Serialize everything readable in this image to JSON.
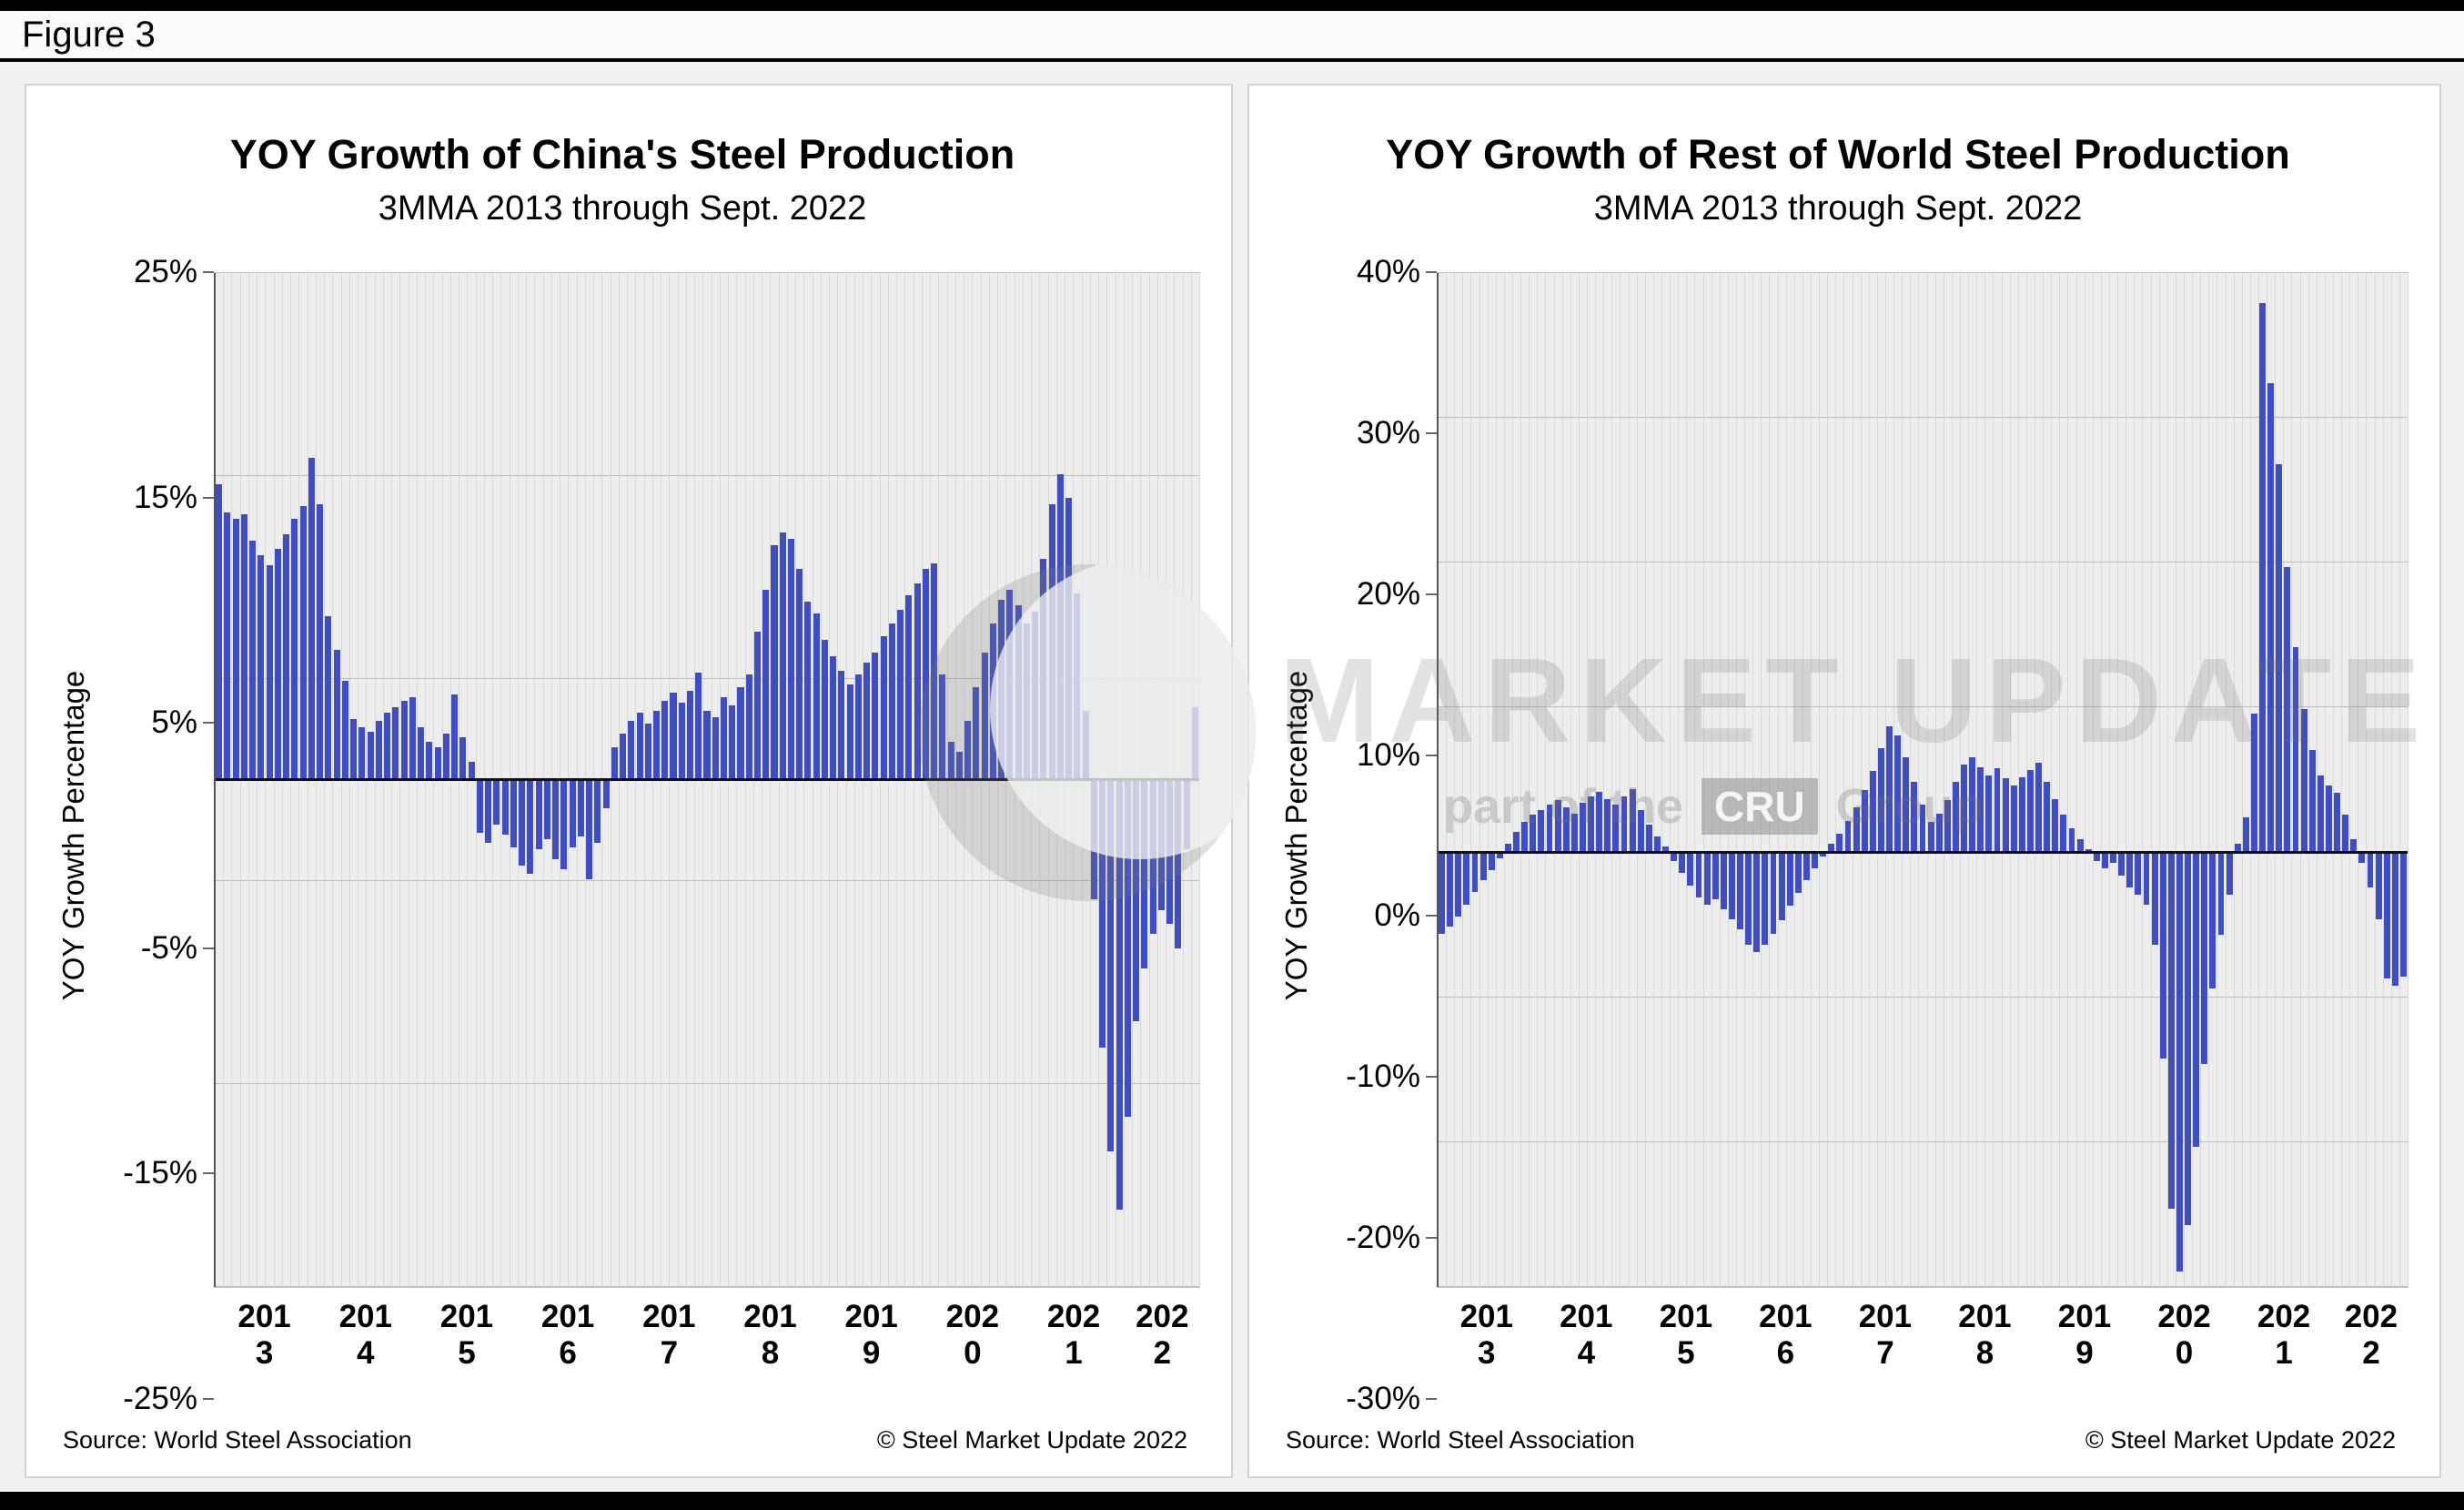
{
  "figure": {
    "label": "Figure 3"
  },
  "watermark": {
    "title": "MARKET UPDATE",
    "sub_left": "part of the",
    "badge": "CRU",
    "sub_right": "Group"
  },
  "chart_data": [
    {
      "type": "bar",
      "title": "YOY Growth of China's Steel Production",
      "subtitle": "3MMA 2013 through Sept. 2022",
      "ylabel": "YOY Growth Percentage",
      "xlabel": "",
      "ylim": [
        -25,
        25
      ],
      "yticks": [
        25,
        15,
        5,
        -5,
        -15,
        -25
      ],
      "ytick_labels": [
        "25%",
        "15%",
        "5%",
        "-5%",
        "-15%",
        "-25%"
      ],
      "x_years": [
        "2013",
        "2014",
        "2015",
        "2016",
        "2017",
        "2018",
        "2019",
        "2020",
        "2021",
        "2022"
      ],
      "x_note": "monthly, Jan 2013 through Sept. 2022",
      "grid": true,
      "legend": "none",
      "bar_color": "#3f4dbf",
      "values": [
        14.6,
        13.2,
        12.9,
        13.1,
        11.8,
        11.1,
        10.6,
        11.4,
        12.1,
        12.9,
        13.5,
        15.9,
        13.6,
        8.1,
        6.4,
        4.9,
        3.0,
        2.6,
        2.4,
        2.9,
        3.3,
        3.6,
        3.9,
        4.1,
        2.6,
        1.9,
        1.6,
        2.3,
        4.2,
        2.1,
        0.9,
        -2.6,
        -3.1,
        -2.2,
        -2.7,
        -3.3,
        -4.2,
        -4.6,
        -3.4,
        -2.9,
        -3.9,
        -4.4,
        -3.3,
        -2.8,
        -4.9,
        -3.1,
        -1.4,
        1.6,
        2.3,
        2.9,
        3.3,
        2.8,
        3.4,
        3.9,
        4.3,
        3.8,
        4.4,
        5.3,
        3.4,
        3.1,
        4.1,
        3.7,
        4.6,
        5.2,
        7.3,
        9.4,
        11.6,
        12.2,
        11.9,
        10.4,
        8.8,
        8.2,
        6.9,
        6.1,
        5.4,
        4.7,
        5.2,
        5.8,
        6.3,
        7.1,
        7.7,
        8.4,
        9.1,
        9.7,
        10.4,
        10.7,
        5.2,
        1.9,
        1.4,
        2.9,
        4.6,
        6.3,
        7.7,
        8.9,
        9.4,
        8.6,
        7.7,
        8.3,
        10.9,
        13.6,
        15.1,
        13.9,
        9.2,
        3.4,
        -5.9,
        -13.2,
        -18.3,
        -21.2,
        -16.6,
        -11.9,
        -9.3,
        -7.6,
        -6.4,
        -7.1,
        -8.3,
        -3.4,
        3.6
      ],
      "source": "Source: World Steel Association",
      "copyright": "© Steel Market Update 2022"
    },
    {
      "type": "bar",
      "title": "YOY Growth of Rest of World Steel Production",
      "subtitle": "3MMA 2013 through Sept. 2022",
      "ylabel": "YOY Growth Percentage",
      "xlabel": "",
      "ylim": [
        -30,
        40
      ],
      "yticks": [
        40,
        30,
        20,
        10,
        0,
        -10,
        -20,
        -30
      ],
      "ytick_labels": [
        "40%",
        "30%",
        "20%",
        "10%",
        "0%",
        "-10%",
        "-20%",
        "-30%"
      ],
      "x_years": [
        "2013",
        "2014",
        "2015",
        "2016",
        "2017",
        "2018",
        "2019",
        "2020",
        "2021",
        "2022"
      ],
      "x_note": "monthly, Jan 2013 through Sept. 2022",
      "grid": true,
      "legend": "none",
      "bar_color": "#3f4dbf",
      "values": [
        -5.6,
        -5.1,
        -4.4,
        -3.6,
        -2.7,
        -1.9,
        -1.2,
        -0.4,
        0.6,
        1.4,
        2.1,
        2.6,
        2.9,
        3.3,
        3.6,
        3.1,
        2.7,
        3.4,
        3.9,
        4.2,
        3.7,
        3.3,
        3.9,
        4.4,
        2.9,
        1.9,
        1.1,
        0.4,
        -0.6,
        -1.4,
        -2.3,
        -3.1,
        -3.6,
        -3.2,
        -3.9,
        -4.6,
        -5.3,
        -6.4,
        -6.9,
        -6.4,
        -5.6,
        -4.7,
        -3.7,
        -2.8,
        -1.9,
        -1.1,
        -0.3,
        0.6,
        1.3,
        2.2,
        3.1,
        4.3,
        5.6,
        7.2,
        8.7,
        8.1,
        6.6,
        4.9,
        3.3,
        2.1,
        2.7,
        3.6,
        4.9,
        6.1,
        6.6,
        5.9,
        5.3,
        5.8,
        5.1,
        4.6,
        5.2,
        5.7,
        6.2,
        4.9,
        3.7,
        2.6,
        1.7,
        0.9,
        0.2,
        -0.6,
        -1.1,
        -0.7,
        -1.6,
        -2.4,
        -2.9,
        -3.6,
        -6.4,
        -14.2,
        -24.6,
        -28.9,
        -25.7,
        -20.3,
        -14.6,
        -9.4,
        -5.7,
        -2.9,
        0.6,
        2.4,
        9.6,
        37.9,
        32.4,
        26.8,
        19.7,
        14.2,
        9.9,
        7.1,
        5.3,
        4.6,
        4.1,
        2.6,
        0.9,
        -0.7,
        -2.4,
        -4.6,
        -8.7,
        -9.2,
        -8.6
      ],
      "source": "Source: World Steel Association",
      "copyright": "© Steel Market Update 2022"
    }
  ]
}
